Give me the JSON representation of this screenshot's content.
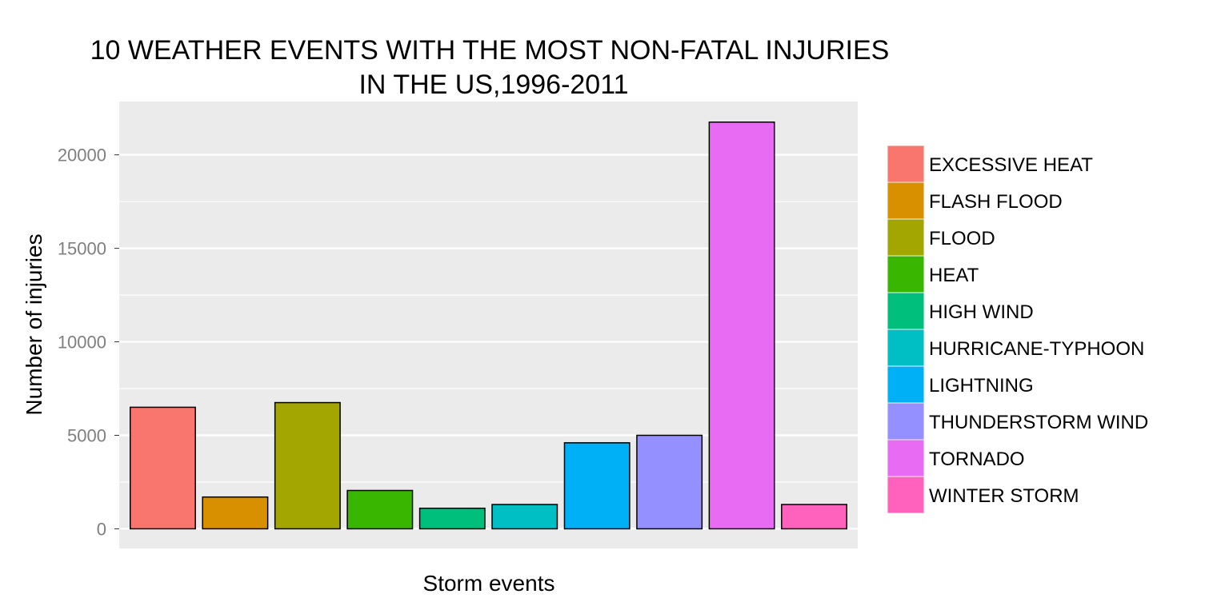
{
  "chart_data": {
    "type": "bar",
    "title_lines": [
      "10 WEATHER EVENTS WITH THE MOST NON-FATAL INJURIES",
      "IN THE US,1996-2011"
    ],
    "xlabel": "Storm events",
    "ylabel": "Number of injuries",
    "ylim": [
      -1050,
      22850
    ],
    "yticks": [
      0,
      5000,
      10000,
      15000,
      20000
    ],
    "ytick_labels": [
      "0",
      "5000",
      "10000",
      "15000",
      "20000"
    ],
    "grid": true,
    "legend_position": "right",
    "categories": [
      "EXCESSIVE HEAT",
      "FLASH FLOOD",
      "FLOOD",
      "HEAT",
      "HIGH WIND",
      "HURRICANE-TYPHOON",
      "LIGHTNING",
      "THUNDERSTORM WIND",
      "TORNADO",
      "WINTER STORM"
    ],
    "values": [
      6500,
      1700,
      6750,
      2050,
      1100,
      1300,
      4600,
      5000,
      21750,
      1300
    ],
    "colors": [
      "#F8766D",
      "#D89000",
      "#A3A500",
      "#39B600",
      "#00BF7D",
      "#00BFC4",
      "#00B0F6",
      "#9590FF",
      "#E76BF3",
      "#FF62BC"
    ]
  }
}
